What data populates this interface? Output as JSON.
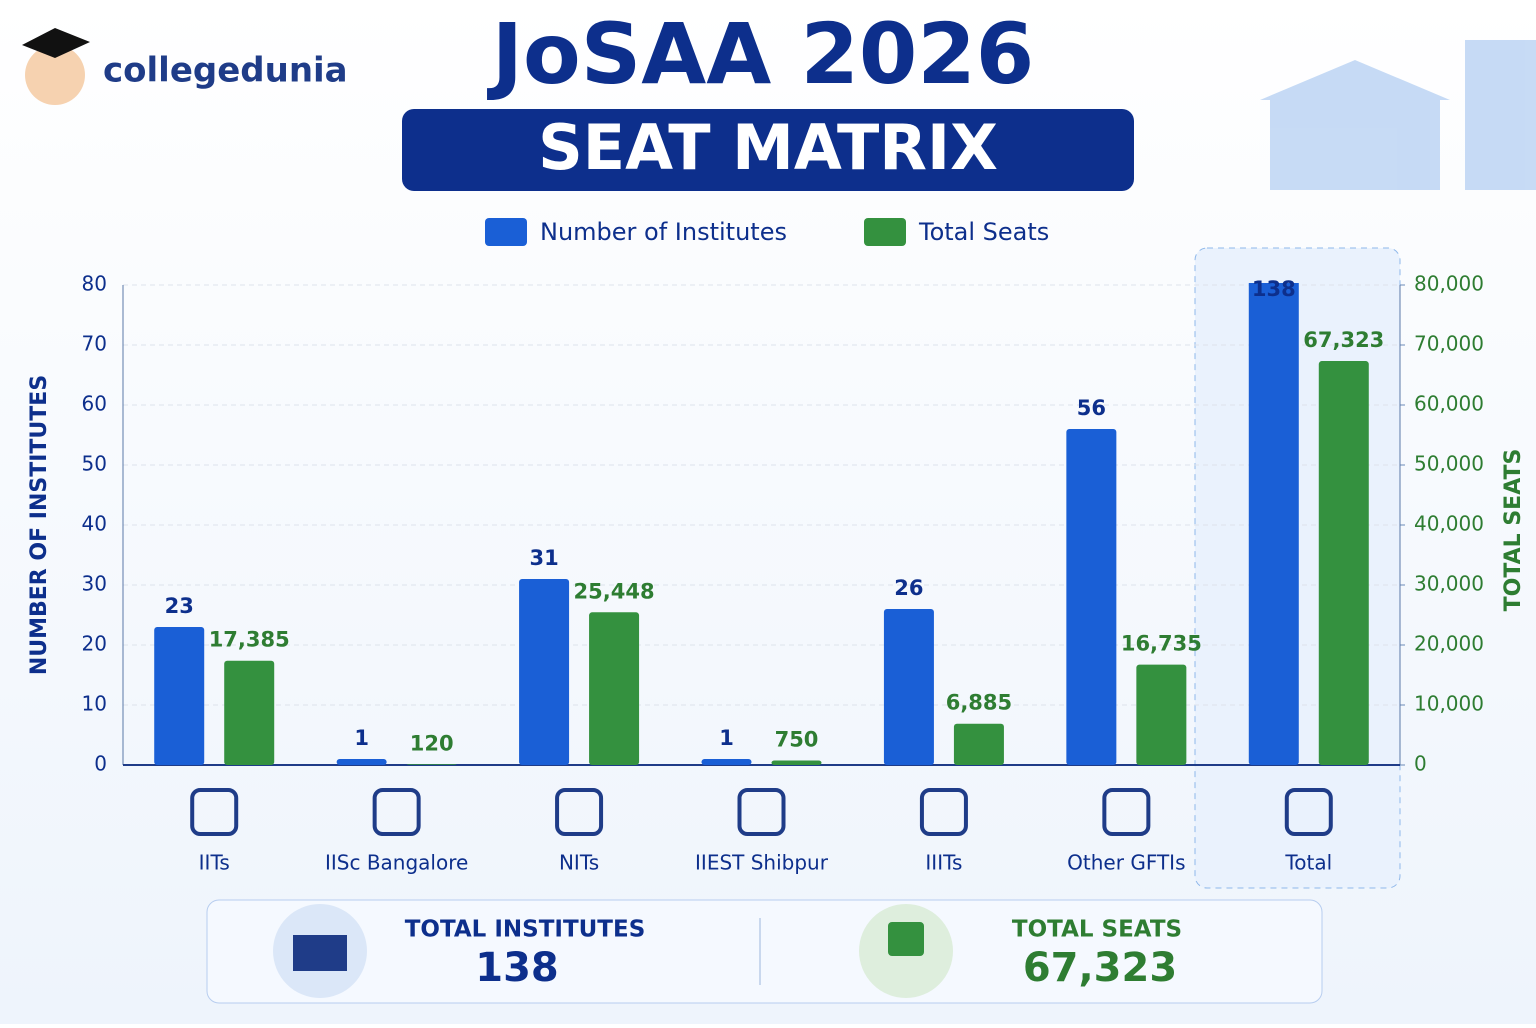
{
  "brand": "collegedunia",
  "chart_data": {
    "type": "bar",
    "title": "JoSAA 2026",
    "subtitle": "SEAT MATRIX",
    "categories": [
      "IITs",
      "IISc Bangalore",
      "NITs",
      "IIEST Shibpur",
      "IIITs",
      "Other GFTIs",
      "Total"
    ],
    "series": [
      {
        "name": "Number of Institutes",
        "color": "#1a5fd6",
        "values": [
          23,
          1,
          31,
          1,
          26,
          56,
          138
        ]
      },
      {
        "name": "Total Seats",
        "color": "#34913f",
        "axis": "y2",
        "values": [
          17385,
          120,
          25448,
          750,
          6885,
          16735,
          67323
        ],
        "value_labels": [
          "17,385",
          "120",
          "25,448",
          "750",
          "6,885",
          "16,735",
          "67,323"
        ]
      }
    ],
    "ylabel": "NUMBER OF INSTITUTES",
    "y2label": "TOTAL SEATS",
    "ylim": [
      0,
      80
    ],
    "yticks": [
      0,
      10,
      20,
      30,
      40,
      50,
      60,
      70,
      80
    ],
    "y2lim": [
      0,
      80000
    ],
    "y2ticks": [
      0,
      {
        "value": 10000,
        "label": "10,000"
      },
      {
        "value": 20000,
        "label": "20,000"
      },
      {
        "value": 30000,
        "label": "30,000"
      },
      {
        "value": 40000,
        "label": "40,000"
      },
      {
        "value": 50000,
        "label": "50,000"
      },
      {
        "value": 60000,
        "label": "60,000"
      },
      {
        "value": 70000,
        "label": "70,000"
      },
      {
        "value": 80000,
        "label": "80,000"
      }
    ],
    "grid": true,
    "legend": "top"
  },
  "summary": [
    {
      "label": "TOTAL INSTITUTES",
      "value": 138
    },
    {
      "label": "TOTAL SEATS",
      "value": 67323,
      "value_label": "67,323"
    }
  ]
}
